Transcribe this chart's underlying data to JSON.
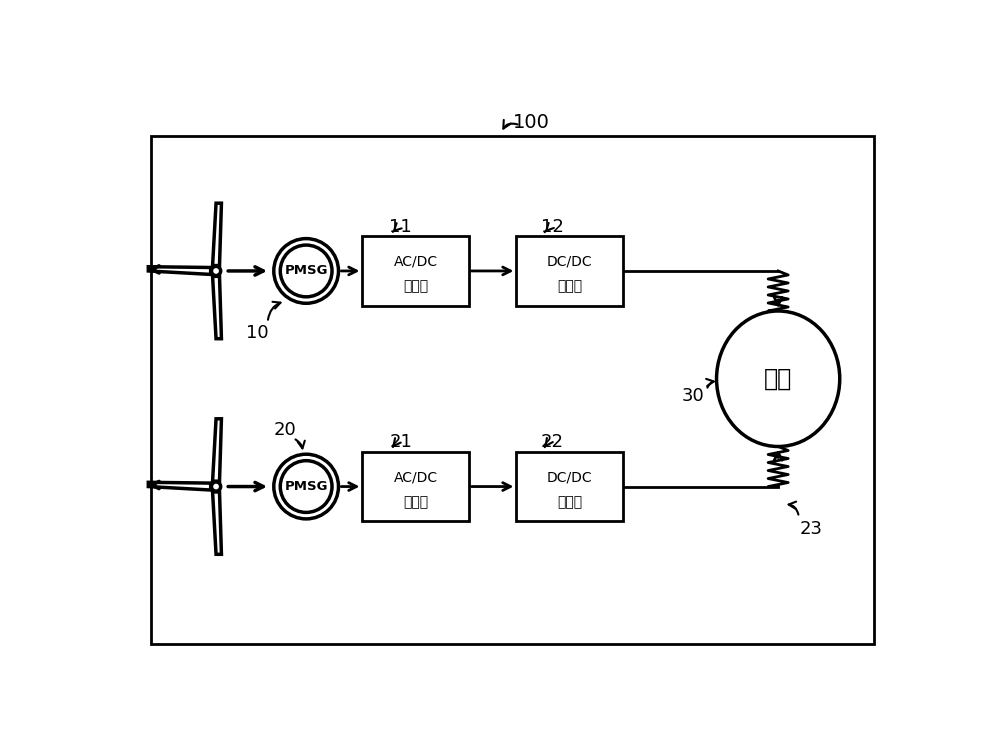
{
  "bg_color": "#ffffff",
  "border_color": "#000000",
  "label_100": "100",
  "label_10": "10",
  "label_11": "11",
  "label_12": "12",
  "label_20": "20",
  "label_21": "21",
  "label_22": "22",
  "label_23": "23",
  "label_30": "30",
  "box1_top_text": "AC/DC",
  "box1_bot_text": "整流器",
  "box2_top_text": "DC/DC",
  "box2_bot_text": "变流器",
  "box3_top_text": "AC/DC",
  "box3_bot_text": "整流器",
  "box4_top_text": "DC/DC",
  "box4_bot_text": "变流器",
  "pmsg_text": "PMSG",
  "load_text": "负载"
}
